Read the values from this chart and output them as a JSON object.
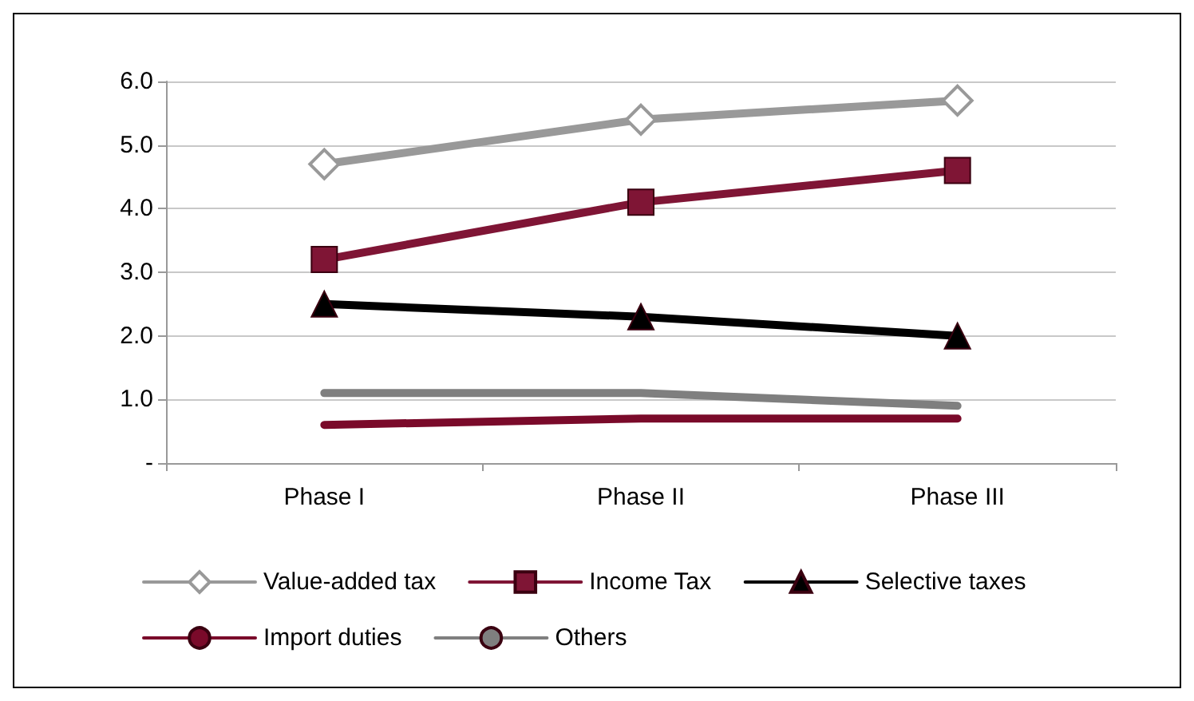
{
  "chart_data": {
    "type": "line",
    "categories": [
      "Phase I",
      "Phase II",
      "Phase III"
    ],
    "series": [
      {
        "name": "Value-added tax",
        "color": "#999999",
        "marker": "diamond",
        "values": [
          4.7,
          5.4,
          5.7
        ]
      },
      {
        "name": "Income Tax",
        "color": "#7f1535",
        "marker": "square",
        "values": [
          3.2,
          4.1,
          4.6
        ]
      },
      {
        "name": "Selective taxes",
        "color": "#000000",
        "marker": "triangle",
        "values": [
          2.5,
          2.3,
          2.0
        ]
      },
      {
        "name": "Import duties",
        "color": "#7a0a2a",
        "marker": "none",
        "values": [
          0.6,
          0.7,
          0.7
        ]
      },
      {
        "name": "Others",
        "color": "#7f7f7f",
        "marker": "none",
        "values": [
          1.1,
          1.1,
          0.9
        ]
      }
    ],
    "ylim": [
      0,
      6
    ],
    "yticks": [
      {
        "value": 0,
        "label": "-"
      },
      {
        "value": 1,
        "label": "1.0"
      },
      {
        "value": 2,
        "label": "2.0"
      },
      {
        "value": 3,
        "label": "3.0"
      },
      {
        "value": 4,
        "label": "4.0"
      },
      {
        "value": 5,
        "label": "5.0"
      },
      {
        "value": 6,
        "label": "6.0"
      }
    ],
    "grid": "y",
    "legend": "bottom",
    "line_style": "solid"
  }
}
